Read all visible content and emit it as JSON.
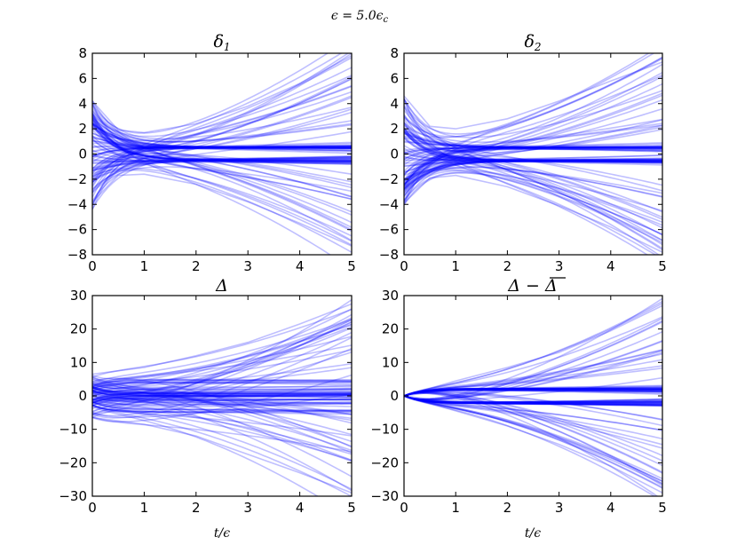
{
  "figure": {
    "suptitle": "ϵ = 5.0ϵ",
    "suptitle_sub": "c"
  },
  "chart_data": [
    {
      "type": "line",
      "title": "δ",
      "title_sub": "1",
      "xlabel": "",
      "ylabel": "",
      "xlim": [
        0,
        5
      ],
      "ylim": [
        -8,
        8
      ],
      "xticks": [
        "0",
        "1",
        "2",
        "3",
        "4",
        "5"
      ],
      "yticks": [
        "8",
        "6",
        "4",
        "2",
        "0",
        "−2",
        "−4",
        "−6",
        "−8"
      ],
      "line_color": "#0000ff",
      "line_alpha": 0.25,
      "grid": false,
      "legend": "none",
      "series_count": 100,
      "trajectory_model": "y(t) = c·e^(−2t) + s·(1 − e^(−3t)) + g·t^1.6",
      "example_series": [
        {
          "x": [
            0,
            0.5,
            1,
            2,
            3,
            4,
            5
          ],
          "y": [
            4.2,
            1.9,
            1.7,
            2.4,
            3.8,
            5.6,
            7.8
          ]
        },
        {
          "x": [
            0,
            0.5,
            1,
            2,
            3,
            4,
            5
          ],
          "y": [
            -3.8,
            -1.7,
            -1.6,
            -2.4,
            -3.8,
            -5.5,
            -7.3
          ]
        },
        {
          "x": [
            0,
            0.5,
            1,
            2,
            3,
            4,
            5
          ],
          "y": [
            2.5,
            0.9,
            0.6,
            0.5,
            0.5,
            0.5,
            0.5
          ]
        },
        {
          "x": [
            0,
            0.5,
            1,
            2,
            3,
            4,
            5
          ],
          "y": [
            -2.2,
            -0.8,
            -0.6,
            -0.5,
            -0.5,
            -0.5,
            -0.5
          ]
        }
      ]
    },
    {
      "type": "line",
      "title": "δ",
      "title_sub": "2",
      "xlabel": "",
      "ylabel": "",
      "xlim": [
        0,
        5
      ],
      "ylim": [
        -8,
        8
      ],
      "xticks": [
        "0",
        "1",
        "2",
        "3",
        "4",
        "5"
      ],
      "yticks": [
        "8",
        "6",
        "4",
        "2",
        "0",
        "−2",
        "−4",
        "−6",
        "−8"
      ],
      "line_color": "#0000ff",
      "line_alpha": 0.25,
      "grid": false,
      "legend": "none",
      "series_count": 100,
      "trajectory_model": "y(t) = c·e^(−2t) + s·(1 − e^(−3t)) + g·t^1.6",
      "example_series": [
        {
          "x": [
            0,
            0.5,
            1,
            2,
            3,
            4,
            5
          ],
          "y": [
            4.6,
            2.2,
            2.0,
            2.8,
            4.2,
            5.8,
            7.3
          ]
        },
        {
          "x": [
            0,
            0.5,
            1,
            2,
            3,
            4,
            5
          ],
          "y": [
            -3.9,
            -1.9,
            -1.7,
            -2.6,
            -4.1,
            -5.8,
            -7.8
          ]
        },
        {
          "x": [
            0,
            0.5,
            1,
            2,
            3,
            4,
            5
          ],
          "y": [
            2.0,
            0.8,
            0.6,
            0.5,
            0.5,
            0.5,
            0.5
          ]
        },
        {
          "x": [
            0,
            0.5,
            1,
            2,
            3,
            4,
            5
          ],
          "y": [
            -2.4,
            -0.9,
            -0.6,
            -0.5,
            -0.5,
            -0.5,
            -0.5
          ]
        }
      ]
    },
    {
      "type": "line",
      "title": "Δ",
      "title_sub": "",
      "xlabel": "t/ϵ",
      "ylabel": "",
      "xlim": [
        0,
        5
      ],
      "ylim": [
        -30,
        30
      ],
      "xticks": [
        "0",
        "1",
        "2",
        "3",
        "4",
        "5"
      ],
      "yticks": [
        "30",
        "20",
        "10",
        "0",
        "−10",
        "−20",
        "−30"
      ],
      "line_color": "#0000ff",
      "line_alpha": 0.25,
      "grid": false,
      "legend": "none",
      "series_count": 100,
      "trajectory_model": "y(t) = y0 + s·(1 − e^(−3t)) + g·t^1.6",
      "example_series": [
        {
          "x": [
            0,
            1,
            2,
            3,
            4,
            5
          ],
          "y": [
            6.5,
            8.5,
            12.0,
            16.0,
            21.5,
            27.5
          ]
        },
        {
          "x": [
            0,
            1,
            2,
            3,
            4,
            5
          ],
          "y": [
            -6.5,
            -8.5,
            -12.0,
            -17.5,
            -23.0,
            -29.0
          ]
        },
        {
          "x": [
            0,
            1,
            2,
            3,
            4,
            5
          ],
          "y": [
            1.0,
            2.0,
            2.0,
            2.0,
            2.0,
            2.0
          ]
        },
        {
          "x": [
            0,
            1,
            2,
            3,
            4,
            5
          ],
          "y": [
            -1.0,
            -2.0,
            -2.0,
            -2.0,
            -2.0,
            -2.0
          ]
        }
      ]
    },
    {
      "type": "line",
      "title": "Δ − Δ",
      "title_sub": "",
      "xlabel": "t/ϵ",
      "ylabel": "",
      "xlim": [
        0,
        5
      ],
      "ylim": [
        -30,
        30
      ],
      "xticks": [
        "0",
        "1",
        "2",
        "3",
        "4",
        "5"
      ],
      "yticks": [
        "30",
        "20",
        "10",
        "0",
        "−10",
        "−20",
        "−30"
      ],
      "line_color": "#0000ff",
      "line_alpha": 0.25,
      "grid": false,
      "legend": "none",
      "series_count": 100,
      "trajectory_model": "y(t) = s·(1 − e^(−3t)) + g·t^1.6, y(0) = 0",
      "example_series": [
        {
          "x": [
            0,
            1,
            2,
            3,
            4,
            5
          ],
          "y": [
            0,
            4.5,
            8.5,
            13.0,
            19.5,
            27.0
          ]
        },
        {
          "x": [
            0,
            1,
            2,
            3,
            4,
            5
          ],
          "y": [
            0,
            -4.5,
            -9.0,
            -14.5,
            -21.0,
            -29.0
          ]
        },
        {
          "x": [
            0,
            1,
            2,
            3,
            4,
            5
          ],
          "y": [
            0,
            2.0,
            2.0,
            2.0,
            2.0,
            2.0
          ]
        },
        {
          "x": [
            0,
            1,
            2,
            3,
            4,
            5
          ],
          "y": [
            0,
            -2.0,
            -2.0,
            -2.0,
            -2.0,
            -2.0
          ]
        }
      ]
    }
  ]
}
